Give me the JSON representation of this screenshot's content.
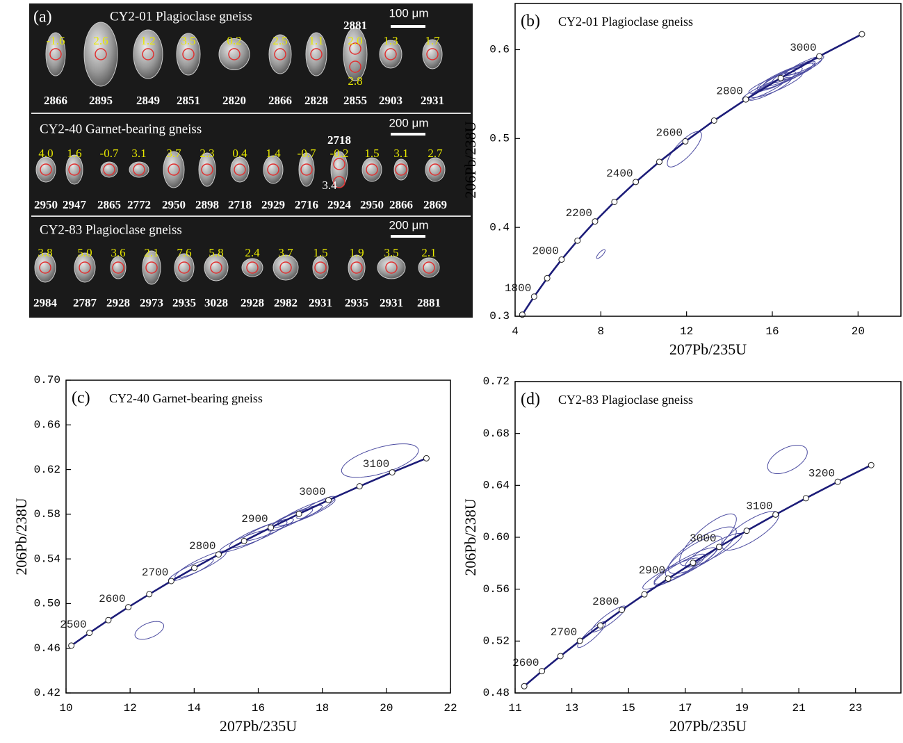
{
  "panel_a": {
    "label": "(a)",
    "groups": [
      {
        "title": "CY2-01 Plagioclase gneiss",
        "scale": "100 μm",
        "grains": [
          {
            "value": "-1.6",
            "age": 2866
          },
          {
            "value": "2.6",
            "age": 2895
          },
          {
            "value": "1.2",
            "age": 2849
          },
          {
            "value": "3.5",
            "age": 2851
          },
          {
            "value": "0.2",
            "age": 2820
          },
          {
            "value": "2.5",
            "age": 2866
          },
          {
            "value": "1.1",
            "age": 2828
          },
          {
            "value": "2.0",
            "age": 2855,
            "second_value": "2.8",
            "second_age": 2881
          },
          {
            "value": "1.3",
            "age": 2903
          },
          {
            "value": "1.7",
            "age": 2931
          }
        ]
      },
      {
        "title": "CY2-40 Garnet-bearing  gneiss",
        "scale": "200 μm",
        "grains": [
          {
            "value": "4.0",
            "age": 2950
          },
          {
            "value": "1.6",
            "age": 2947
          },
          {
            "value": "-0.7",
            "age": 2865
          },
          {
            "value": "3.1",
            "age": 2772
          },
          {
            "value": "3.7",
            "age": 2950
          },
          {
            "value": "2.3",
            "age": 2898
          },
          {
            "value": "0.4",
            "age": 2718
          },
          {
            "value": "1.4",
            "age": 2929
          },
          {
            "value": "-0.7",
            "age": 2716
          },
          {
            "value": "-0.2",
            "age": 2924,
            "second_value": "3.4",
            "second_age": 2718
          },
          {
            "value": "1.5",
            "age": 2950
          },
          {
            "value": "3.1",
            "age": 2866
          },
          {
            "value": "2.7",
            "age": 2869
          }
        ]
      },
      {
        "title": "CY2-83 Plagioclase gneiss",
        "scale": "200 μm",
        "grains": [
          {
            "value": "3.8",
            "age": 2984
          },
          {
            "value": "5.0",
            "age": 2787
          },
          {
            "value": "3.6",
            "age": 2928
          },
          {
            "value": "2.1",
            "age": 2973
          },
          {
            "value": "7.6",
            "age": 2935
          },
          {
            "value": "5.8",
            "age": 3028
          },
          {
            "value": "2.4",
            "age": 2928
          },
          {
            "value": "3.7",
            "age": 2982
          },
          {
            "value": "1.5",
            "age": 2931
          },
          {
            "value": "1.9",
            "age": 2935
          },
          {
            "value": "3.5",
            "age": 2931
          },
          {
            "value": "2.1",
            "age": 2881
          }
        ]
      }
    ]
  },
  "chart_data": [
    {
      "type": "concordia",
      "panel": "(b)",
      "title": "CY2-01 Plagioclase gneiss",
      "x_label": "207Pb/235U",
      "y_label": "206Pb/238U",
      "xlim": [
        4,
        22
      ],
      "ylim": [
        0.3,
        0.652
      ],
      "xticks": [
        4,
        8,
        12,
        16,
        20
      ],
      "yticks": [
        0.3,
        0.4,
        0.5,
        0.6
      ],
      "curve_color": "#1c1c78",
      "ellipse_color": "#4b4ba0",
      "concordia": {
        "x": [
          4.335,
          4.887,
          5.496,
          6.169,
          6.911,
          7.729,
          8.633,
          9.63,
          10.73,
          11.944,
          13.284,
          14.762,
          16.394,
          18.193,
          20.181
        ],
        "y": [
          0.3018,
          0.3221,
          0.3428,
          0.3638,
          0.3851,
          0.4067,
          0.4287,
          0.4511,
          0.4738,
          0.4968,
          0.5202,
          0.544,
          0.5681,
          0.5926,
          0.6175
        ],
        "labels": [
          null,
          "1800",
          null,
          "2000",
          null,
          "2200",
          null,
          "2400",
          null,
          "2600",
          null,
          "2800",
          null,
          "3000",
          null
        ]
      },
      "ellipses": {
        "x": [
          8.0,
          11.9,
          15.6,
          16.0,
          16.4,
          16.8,
          17.0,
          16.2,
          17.3,
          15.9,
          16.6,
          17.5
        ],
        "y": [
          0.37,
          0.488,
          0.555,
          0.563,
          0.567,
          0.572,
          0.575,
          0.56,
          0.578,
          0.556,
          0.57,
          0.582
        ],
        "x_err": [
          0.2,
          0.8,
          1.0,
          1.1,
          1.0,
          1.2,
          1.0,
          1.2,
          1.0,
          1.0,
          1.3,
          0.9
        ],
        "y_err": [
          0.005,
          0.02,
          0.012,
          0.012,
          0.013,
          0.013,
          0.012,
          0.014,
          0.012,
          0.013,
          0.015,
          0.011
        ],
        "rho": [
          0.8,
          0.8,
          0.9,
          0.9,
          0.9,
          0.9,
          0.9,
          0.9,
          0.9,
          0.9,
          0.9,
          0.9
        ]
      }
    },
    {
      "type": "concordia",
      "panel": "(c)",
      "title": "CY2-40 Garnet-bearing  gneiss",
      "x_label": "207Pb/235U",
      "y_label": "206Pb/238U",
      "xlim": [
        10,
        22
      ],
      "ylim": [
        0.42,
        0.7
      ],
      "xticks": [
        10,
        12,
        14,
        16,
        18,
        20,
        22
      ],
      "yticks": [
        0.42,
        0.46,
        {
          "value": 0.5,
          "label": "0.50"
        },
        0.54,
        0.58,
        0.62,
        0.66,
        {
          "value": 0.7,
          "label": "0.70"
        }
      ],
      "curve_color": "#1c1c78",
      "ellipse_color": "#4b4ba0",
      "concordia": {
        "x": [
          10.166,
          10.73,
          11.322,
          11.944,
          12.598,
          13.284,
          14.005,
          14.762,
          15.558,
          16.394,
          17.271,
          18.193,
          19.163,
          20.181,
          21.25
        ],
        "y": [
          0.4624,
          0.4738,
          0.4852,
          0.4968,
          0.5084,
          0.5202,
          0.532,
          0.544,
          0.556,
          0.5681,
          0.5803,
          0.5926,
          0.605,
          0.6175,
          0.6301
        ],
        "labels": [
          null,
          "2500",
          null,
          "2600",
          null,
          "2700",
          null,
          "2800",
          null,
          "2900",
          null,
          "3000",
          null,
          "3100",
          null
        ]
      },
      "ellipses": {
        "x": [
          12.6,
          19.8,
          13.9,
          14.2,
          15.6,
          16.0,
          16.3,
          17.2,
          17.5,
          17.0,
          17.8
        ],
        "y": [
          0.476,
          0.628,
          0.53,
          0.535,
          0.556,
          0.562,
          0.566,
          0.578,
          0.582,
          0.575,
          0.586
        ],
        "x_err": [
          0.45,
          1.2,
          0.7,
          0.8,
          0.8,
          0.9,
          0.8,
          0.8,
          0.9,
          0.7,
          0.6
        ],
        "y_err": [
          0.008,
          0.015,
          0.01,
          0.012,
          0.01,
          0.012,
          0.01,
          0.01,
          0.012,
          0.01,
          0.01
        ],
        "rho": [
          0.5,
          0.6,
          0.9,
          0.9,
          0.9,
          0.9,
          0.9,
          0.9,
          0.9,
          0.9,
          0.9
        ]
      }
    },
    {
      "type": "concordia",
      "panel": "(d)",
      "title": "CY2-83 Plagioclase gneiss",
      "x_label": "207Pb/235U",
      "y_label": "206Pb/238U",
      "xlim": [
        11,
        24.6
      ],
      "ylim": [
        0.48,
        0.72
      ],
      "xticks": [
        11,
        13,
        15,
        17,
        19,
        21,
        23
      ],
      "yticks": [
        0.48,
        0.52,
        0.56,
        {
          "value": 0.6,
          "label": "0.60"
        },
        0.64,
        0.68,
        0.72
      ],
      "curve_color": "#1c1c78",
      "ellipse_color": "#4b4ba0",
      "concordia": {
        "x": [
          11.322,
          11.944,
          12.598,
          13.284,
          14.005,
          14.762,
          15.558,
          16.394,
          17.271,
          18.193,
          19.163,
          20.181,
          21.25,
          22.373,
          23.552
        ],
        "y": [
          0.4852,
          0.4968,
          0.5084,
          0.5202,
          0.532,
          0.544,
          0.556,
          0.5681,
          0.5803,
          0.5926,
          0.605,
          0.6175,
          0.6301,
          0.6428,
          0.6556
        ],
        "labels": [
          null,
          "2600",
          null,
          "2700",
          null,
          "2800",
          null,
          "2900",
          null,
          "3000",
          null,
          "3100",
          null,
          "3200",
          null
        ]
      },
      "ellipses": {
        "x": [
          20.6,
          13.7,
          14.3,
          16.5,
          17.0,
          17.3,
          17.6,
          16.8,
          18.0,
          19.3,
          17.8
        ],
        "y": [
          0.66,
          0.525,
          0.537,
          0.572,
          0.578,
          0.585,
          0.59,
          0.575,
          0.59,
          0.605,
          0.598
        ],
        "x_err": [
          0.7,
          0.5,
          0.6,
          1.0,
          1.1,
          1.0,
          1.2,
          0.9,
          1.0,
          1.0,
          1.0
        ],
        "y_err": [
          0.011,
          0.01,
          0.01,
          0.012,
          0.014,
          0.016,
          0.018,
          0.012,
          0.013,
          0.015,
          0.02
        ],
        "rho": [
          0.5,
          0.9,
          0.9,
          0.9,
          0.9,
          0.8,
          0.8,
          0.9,
          0.9,
          0.8,
          0.8
        ]
      }
    }
  ]
}
